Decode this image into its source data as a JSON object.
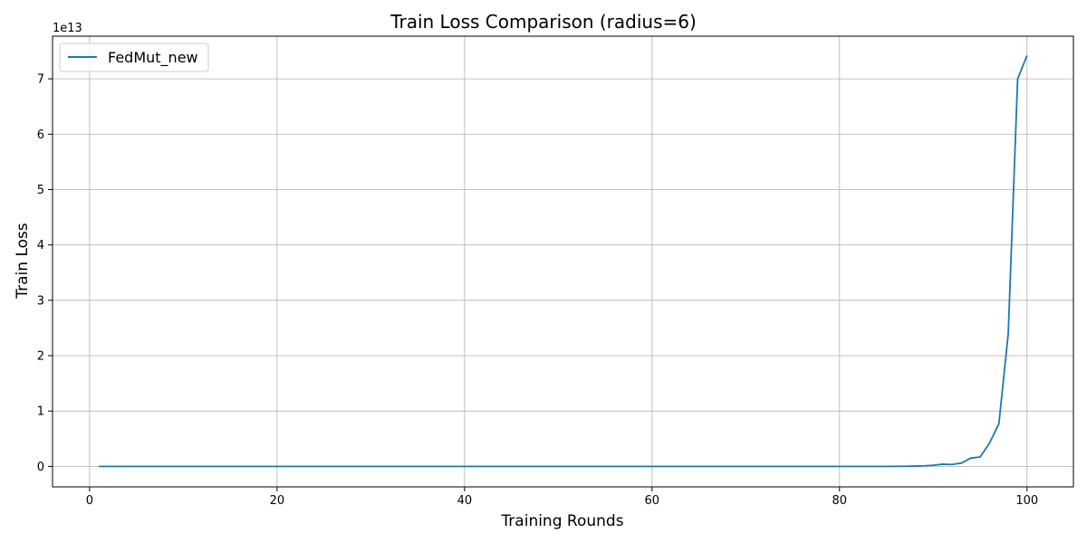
{
  "chart_data": {
    "type": "line",
    "title": "Train Loss Comparison (radius=6)",
    "xlabel": "Training Rounds",
    "ylabel": "Train Loss",
    "y_scale_label": "1e13",
    "xlim": [
      -3.95,
      104.95
    ],
    "ylim": [
      -0.37,
      7.77
    ],
    "y_multiplier": 10000000000000.0,
    "x_ticks": [
      0,
      20,
      40,
      60,
      80,
      100
    ],
    "y_ticks": [
      0,
      1,
      2,
      3,
      4,
      5,
      6,
      7
    ],
    "grid": true,
    "legend_position": "top-left",
    "colors": {
      "series_1": "#1f77b4",
      "grid": "#b0b0b0"
    },
    "series": [
      {
        "name": "FedMut_new",
        "x": [
          1,
          2,
          3,
          4,
          5,
          6,
          7,
          8,
          9,
          10,
          11,
          12,
          13,
          14,
          15,
          16,
          17,
          18,
          19,
          20,
          21,
          22,
          23,
          24,
          25,
          26,
          27,
          28,
          29,
          30,
          31,
          32,
          33,
          34,
          35,
          36,
          37,
          38,
          39,
          40,
          41,
          42,
          43,
          44,
          45,
          46,
          47,
          48,
          49,
          50,
          51,
          52,
          53,
          54,
          55,
          56,
          57,
          58,
          59,
          60,
          61,
          62,
          63,
          64,
          65,
          66,
          67,
          68,
          69,
          70,
          71,
          72,
          73,
          74,
          75,
          76,
          77,
          78,
          79,
          80,
          81,
          82,
          83,
          84,
          85,
          86,
          87,
          88,
          89,
          90,
          91,
          92,
          93,
          94,
          95,
          96,
          97,
          98,
          99,
          100
        ],
        "y": [
          0,
          0,
          0,
          0,
          0,
          0,
          0,
          0,
          0,
          0,
          0,
          0,
          0,
          0,
          0,
          0,
          0,
          0,
          0,
          0,
          0,
          0,
          0,
          0,
          0,
          0,
          0,
          0,
          0,
          0,
          0,
          0,
          0,
          0,
          0,
          0,
          0,
          0,
          0,
          0,
          0,
          0,
          0,
          0,
          0,
          0,
          0,
          0,
          0,
          0,
          0,
          0,
          0,
          0,
          0,
          0,
          0,
          0,
          0,
          0,
          0,
          0,
          0,
          0,
          0,
          0,
          0,
          0,
          0,
          0,
          0,
          0,
          0,
          0,
          0,
          0,
          0,
          0,
          0,
          0,
          0,
          0,
          0,
          0,
          0,
          0.001,
          0.002,
          0.005,
          0.01,
          0.02,
          0.04,
          0.035,
          0.06,
          0.15,
          0.17,
          0.42,
          0.77,
          2.4,
          7.0,
          7.42
        ]
      }
    ]
  }
}
